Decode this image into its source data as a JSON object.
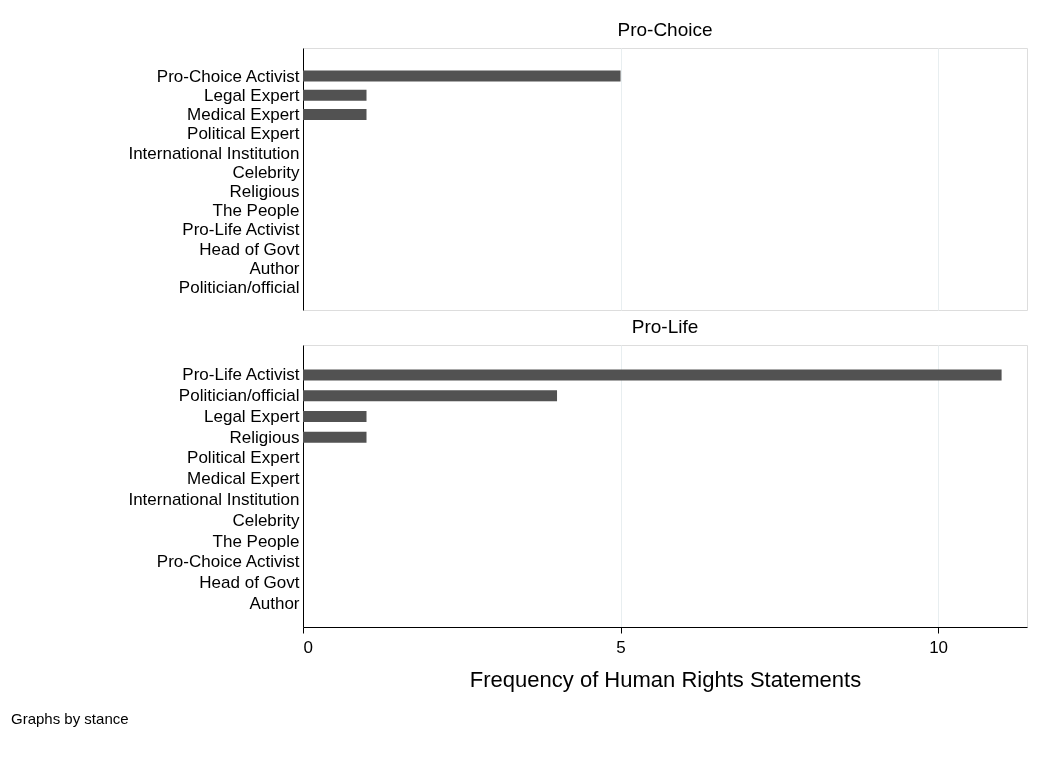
{
  "chart_data": [
    {
      "type": "bar",
      "orientation": "horizontal",
      "title": "Pro-Choice",
      "categories": [
        "Pro-Choice Activist",
        "Legal Expert",
        "Medical Expert",
        "Political Expert",
        "International Institution",
        "Celebrity",
        "Religious",
        "The People",
        "Pro-Life Activist",
        "Head of Govt",
        "Author",
        "Politician/official"
      ],
      "values": [
        5,
        1,
        1,
        0,
        0,
        0,
        0,
        0,
        0,
        0,
        0,
        0
      ],
      "color": "#525252",
      "xlim": [
        0,
        11.4
      ],
      "xticks": [
        0,
        5,
        10
      ],
      "grid": "x",
      "tick_labels": "y"
    },
    {
      "type": "bar",
      "orientation": "horizontal",
      "title": "Pro-Life",
      "categories": [
        "Pro-Life Activist",
        "Politician/official",
        "Legal Expert",
        "Religious",
        "Political Expert",
        "Medical Expert",
        "International Institution",
        "Celebrity",
        "The People",
        "Pro-Choice Activist",
        "Head of Govt",
        "Author"
      ],
      "values": [
        11,
        4,
        1,
        1,
        0,
        0,
        0,
        0,
        0,
        0,
        0,
        0
      ],
      "color": "#525252",
      "xlim": [
        0,
        11.4
      ],
      "xticks": [
        0,
        5,
        10
      ],
      "grid": "x",
      "xlabel": "Frequency of Human Rights Statements",
      "annotations": [
        "Graphs by stance"
      ]
    }
  ]
}
